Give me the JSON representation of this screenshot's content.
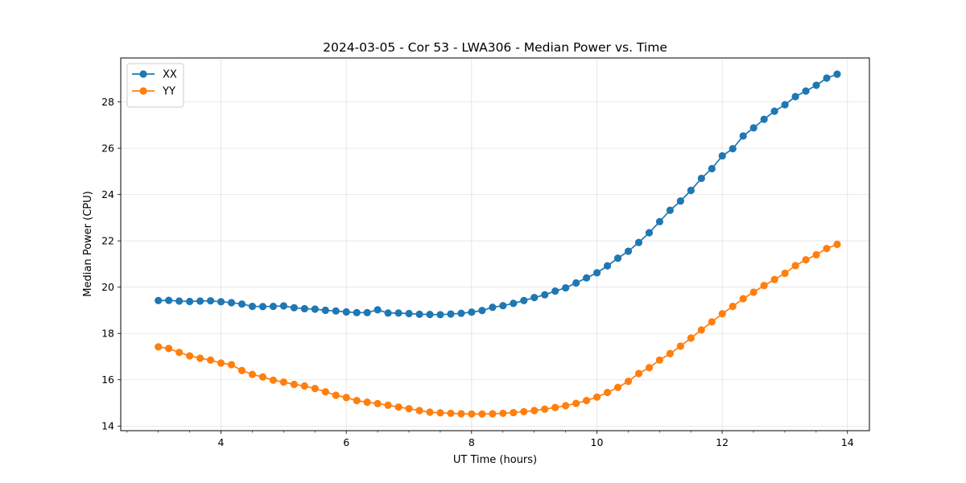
{
  "chart_data": {
    "type": "line",
    "title": "2024-03-05 - Cor 53 - LWA306 - Median Power vs. Time",
    "xlabel": "UT Time (hours)",
    "ylabel": "Median Power (CPU)",
    "xlim": [
      2.4,
      14.35
    ],
    "ylim": [
      13.8,
      29.9
    ],
    "xticks": [
      4,
      6,
      8,
      10,
      12,
      14
    ],
    "yticks": [
      14,
      16,
      18,
      20,
      22,
      24,
      26,
      28
    ],
    "minor_step": 0.5,
    "grid": true,
    "legend": "upper-left",
    "x_start": 3.0,
    "x_step": 0.1667,
    "series": [
      {
        "name": "XX",
        "color": "#1f77b4",
        "values": [
          19.42,
          19.43,
          19.4,
          19.38,
          19.4,
          19.41,
          19.37,
          19.33,
          19.27,
          19.17,
          19.16,
          19.17,
          19.19,
          19.11,
          19.07,
          19.05,
          19.0,
          18.97,
          18.93,
          18.9,
          18.9,
          19.02,
          18.88,
          18.88,
          18.86,
          18.83,
          18.82,
          18.81,
          18.84,
          18.87,
          18.92,
          18.99,
          19.13,
          19.2,
          19.3,
          19.42,
          19.55,
          19.67,
          19.83,
          19.97,
          20.18,
          20.4,
          20.62,
          20.92,
          21.25,
          21.55,
          21.93,
          22.35,
          22.83,
          23.32,
          23.72,
          24.18,
          24.7,
          25.12,
          25.67,
          25.98,
          26.53,
          26.88,
          27.25,
          27.6,
          27.88,
          28.23,
          28.47,
          28.72,
          29.03,
          29.2
        ]
      },
      {
        "name": "YY",
        "color": "#ff7f0e",
        "values": [
          17.42,
          17.35,
          17.18,
          17.03,
          16.93,
          16.85,
          16.72,
          16.65,
          16.4,
          16.23,
          16.12,
          15.98,
          15.9,
          15.8,
          15.73,
          15.62,
          15.48,
          15.33,
          15.23,
          15.1,
          15.03,
          14.97,
          14.9,
          14.82,
          14.75,
          14.67,
          14.6,
          14.57,
          14.55,
          14.53,
          14.52,
          14.52,
          14.53,
          14.55,
          14.58,
          14.62,
          14.67,
          14.73,
          14.8,
          14.88,
          14.98,
          15.1,
          15.25,
          15.45,
          15.67,
          15.93,
          16.27,
          16.52,
          16.85,
          17.13,
          17.45,
          17.8,
          18.15,
          18.5,
          18.85,
          19.17,
          19.5,
          19.78,
          20.07,
          20.33,
          20.6,
          20.93,
          21.18,
          21.4,
          21.67,
          21.85
        ]
      }
    ]
  }
}
